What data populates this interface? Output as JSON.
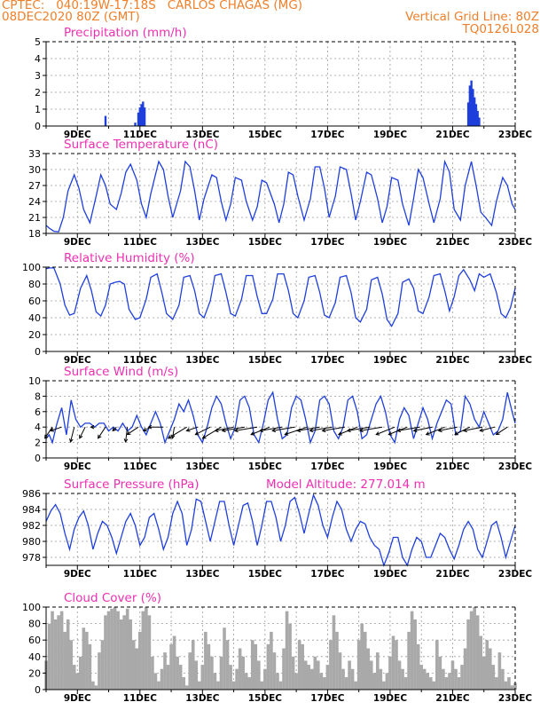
{
  "header": {
    "line1_left": "CPTEC:   040:19W-17:18S   CARLOS CHAGAS (MG)",
    "line2_left": "08DEC2020 80Z (GMT)",
    "line2_right": "Vertical Grid Line: 80Z",
    "line3_right": "TQ0126L028"
  },
  "colors": {
    "header": "#ef7f2a",
    "title": "#ef2fb2",
    "line": "#1f3fdc",
    "cloud": "#a9a9a9",
    "wind_arrow": "#000000"
  },
  "x_axis": {
    "start": "08DEC2020",
    "end": "23DEC2020",
    "tick_labels": [
      "9DEC",
      "11DEC",
      "13DEC",
      "15DEC",
      "17DEC",
      "19DEC",
      "21DEC",
      "23DEC"
    ],
    "tick_days": [
      9,
      11,
      13,
      15,
      17,
      19,
      21,
      23
    ]
  },
  "chart_data": [
    {
      "type": "bar",
      "title": "Precipitation (mm/h)",
      "ylim": [
        0,
        5
      ],
      "yticks": [
        0,
        1,
        2,
        3,
        4,
        5
      ],
      "grid": true,
      "x": [
        9.9,
        10.85,
        10.95,
        11.0,
        11.05,
        11.1,
        11.15,
        21.5,
        21.55,
        21.6,
        21.65,
        21.7,
        21.75,
        21.8,
        21.85
      ],
      "values": [
        0.6,
        0.2,
        0.8,
        1.1,
        1.3,
        1.45,
        1.1,
        1.4,
        2.4,
        2.7,
        2.2,
        1.7,
        1.3,
        0.9,
        0.5
      ]
    },
    {
      "type": "line",
      "title": "Surface Temperature (nC)",
      "ylim": [
        18,
        33
      ],
      "yticks": [
        18,
        21,
        24,
        27,
        30,
        33
      ],
      "grid": true,
      "x": [
        8.0,
        8.1,
        8.25,
        8.4,
        8.55,
        8.7,
        8.9,
        9.05,
        9.2,
        9.4,
        9.6,
        9.75,
        9.9,
        10.05,
        10.25,
        10.4,
        10.55,
        10.7,
        10.9,
        11.05,
        11.2,
        11.35,
        11.6,
        11.75,
        11.9,
        12.05,
        12.3,
        12.45,
        12.6,
        12.75,
        12.9,
        13.05,
        13.3,
        13.45,
        13.6,
        13.75,
        13.9,
        14.05,
        14.25,
        14.4,
        14.6,
        14.75,
        14.9,
        15.05,
        15.3,
        15.45,
        15.6,
        15.75,
        15.9,
        16.05,
        16.25,
        16.45,
        16.6,
        16.75,
        16.9,
        17.05,
        17.25,
        17.4,
        17.6,
        17.75,
        17.9,
        18.05,
        18.25,
        18.4,
        18.6,
        18.75,
        18.9,
        19.05,
        19.25,
        19.4,
        19.6,
        19.75,
        19.9,
        20.05,
        20.25,
        20.4,
        20.6,
        20.75,
        20.9,
        21.05,
        21.25,
        21.4,
        21.6,
        21.75,
        21.9,
        22.05,
        22.25,
        22.4,
        22.6,
        22.75,
        22.9,
        23.0
      ],
      "values": [
        19.5,
        19.0,
        18.4,
        18.3,
        21.0,
        26.0,
        29.0,
        26.5,
        22.5,
        20.0,
        25.0,
        29.0,
        27.0,
        23.5,
        22.5,
        25.5,
        29.5,
        31.0,
        28.0,
        23.5,
        21.0,
        25.5,
        31.5,
        30.0,
        25.0,
        21.0,
        26.0,
        31.5,
        30.5,
        26.0,
        20.5,
        24.5,
        29.0,
        28.5,
        24.0,
        20.5,
        23.5,
        28.5,
        28.0,
        24.0,
        20.5,
        23.0,
        28.0,
        27.5,
        23.5,
        20.0,
        23.5,
        29.5,
        29.0,
        25.0,
        20.5,
        24.5,
        30.5,
        30.5,
        26.5,
        21.0,
        25.0,
        30.5,
        30.0,
        25.5,
        20.5,
        24.0,
        29.5,
        29.0,
        24.5,
        20.0,
        23.0,
        28.5,
        28.0,
        23.5,
        19.5,
        24.5,
        30.0,
        28.5,
        23.5,
        20.0,
        24.5,
        31.5,
        29.5,
        22.5,
        20.5,
        27.0,
        31.5,
        27.0,
        22.0,
        21.0,
        19.5,
        24.0,
        28.5,
        27.0,
        23.5,
        22.5
      ]
    },
    {
      "type": "line",
      "title": "Relative Humidity (%)",
      "ylim": [
        0,
        100
      ],
      "yticks": [
        0,
        20,
        40,
        60,
        80,
        100
      ],
      "grid": true,
      "x": [
        8.0,
        8.1,
        8.25,
        8.45,
        8.6,
        8.75,
        8.9,
        9.1,
        9.3,
        9.45,
        9.6,
        9.75,
        9.9,
        10.05,
        10.2,
        10.35,
        10.5,
        10.65,
        10.85,
        11.0,
        11.2,
        11.35,
        11.55,
        11.7,
        11.85,
        12.05,
        12.25,
        12.4,
        12.6,
        12.75,
        12.9,
        13.05,
        13.25,
        13.4,
        13.6,
        13.75,
        13.9,
        14.05,
        14.25,
        14.4,
        14.6,
        14.75,
        14.9,
        15.05,
        15.25,
        15.4,
        15.6,
        15.75,
        15.9,
        16.05,
        16.25,
        16.4,
        16.6,
        16.75,
        16.9,
        17.05,
        17.25,
        17.4,
        17.6,
        17.75,
        17.9,
        18.05,
        18.25,
        18.4,
        18.6,
        18.75,
        18.9,
        19.05,
        19.25,
        19.4,
        19.6,
        19.75,
        19.9,
        20.05,
        20.25,
        20.4,
        20.6,
        20.75,
        20.9,
        21.05,
        21.2,
        21.35,
        21.55,
        21.7,
        21.85,
        22.0,
        22.2,
        22.4,
        22.55,
        22.7,
        22.85,
        23.0
      ],
      "values": [
        98,
        99,
        99,
        80,
        55,
        43,
        45,
        75,
        90,
        72,
        47,
        42,
        55,
        80,
        82,
        83,
        80,
        50,
        38,
        40,
        62,
        88,
        92,
        70,
        45,
        38,
        55,
        88,
        90,
        72,
        45,
        40,
        60,
        90,
        92,
        70,
        45,
        42,
        62,
        90,
        90,
        65,
        45,
        45,
        62,
        92,
        92,
        72,
        45,
        40,
        60,
        88,
        90,
        70,
        43,
        40,
        58,
        88,
        90,
        70,
        40,
        35,
        50,
        85,
        88,
        68,
        38,
        30,
        45,
        82,
        86,
        75,
        48,
        45,
        65,
        90,
        92,
        72,
        48,
        65,
        90,
        97,
        85,
        72,
        92,
        88,
        92,
        70,
        45,
        40,
        52,
        75
      ]
    },
    {
      "type": "line",
      "title": "Surface Wind (m/s)",
      "ylim": [
        0,
        10
      ],
      "yticks": [
        0,
        2,
        4,
        6,
        8,
        10
      ],
      "grid": true,
      "series_label": "speed with direction arrows",
      "x": [
        8.0,
        8.1,
        8.2,
        8.35,
        8.5,
        8.65,
        8.8,
        8.95,
        9.1,
        9.25,
        9.4,
        9.55,
        9.7,
        9.85,
        10.0,
        10.15,
        10.3,
        10.45,
        10.6,
        10.75,
        10.9,
        11.05,
        11.2,
        11.35,
        11.5,
        11.65,
        11.8,
        11.95,
        12.1,
        12.25,
        12.4,
        12.55,
        12.7,
        12.85,
        13.0,
        13.15,
        13.3,
        13.45,
        13.6,
        13.75,
        13.9,
        14.05,
        14.2,
        14.35,
        14.5,
        14.65,
        14.8,
        14.95,
        15.1,
        15.25,
        15.4,
        15.55,
        15.7,
        15.85,
        16.0,
        16.15,
        16.3,
        16.45,
        16.6,
        16.75,
        16.9,
        17.05,
        17.2,
        17.35,
        17.5,
        17.65,
        17.8,
        17.95,
        18.1,
        18.25,
        18.4,
        18.55,
        18.7,
        18.85,
        19.0,
        19.15,
        19.3,
        19.45,
        19.6,
        19.75,
        19.9,
        20.05,
        20.2,
        20.35,
        20.5,
        20.65,
        20.8,
        20.95,
        21.1,
        21.25,
        21.4,
        21.55,
        21.7,
        21.85,
        22.0,
        22.15,
        22.3,
        22.45,
        22.6,
        22.75,
        22.9,
        23.0
      ],
      "values": [
        2.5,
        3.0,
        2.0,
        4.5,
        6.5,
        3.0,
        7.5,
        5.0,
        4.0,
        4.5,
        4.5,
        4.0,
        4.5,
        4.5,
        3.5,
        4.0,
        3.5,
        4.5,
        3.5,
        4.0,
        5.5,
        4.0,
        3.0,
        4.5,
        6.0,
        4.5,
        2.0,
        3.5,
        5.0,
        7.0,
        6.0,
        7.5,
        5.5,
        3.0,
        2.0,
        4.0,
        6.5,
        8.0,
        7.0,
        4.5,
        2.5,
        4.0,
        7.5,
        8.0,
        6.5,
        3.0,
        2.0,
        4.5,
        7.5,
        8.5,
        5.0,
        2.5,
        3.0,
        6.5,
        8.0,
        7.5,
        5.0,
        2.0,
        3.5,
        7.5,
        8.0,
        7.0,
        3.5,
        2.5,
        4.0,
        7.5,
        8.0,
        6.0,
        2.5,
        3.0,
        5.0,
        7.0,
        8.0,
        6.0,
        3.0,
        2.0,
        5.0,
        6.5,
        5.5,
        2.5,
        4.5,
        6.5,
        5.0,
        2.5,
        4.5,
        6.0,
        7.5,
        7.0,
        3.0,
        3.5,
        8.0,
        7.0,
        5.0,
        4.0,
        6.0,
        4.5,
        3.0,
        3.5,
        5.0,
        8.5,
        6.0,
        4.5
      ],
      "arrows": {
        "x": [
          8.2,
          8.5,
          8.9,
          9.25,
          9.55,
          9.9,
          10.25,
          10.6,
          10.95,
          11.35,
          11.75,
          12.1,
          12.5,
          12.85,
          13.25,
          13.6,
          14.0,
          14.35,
          14.75,
          15.15,
          15.55,
          15.95,
          16.35,
          16.75,
          17.15,
          17.55,
          17.95,
          18.35,
          18.75,
          19.15,
          19.55,
          19.95,
          20.35,
          20.75,
          21.15,
          21.55,
          21.95,
          22.35,
          22.75
        ],
        "u": [
          -2,
          -3,
          -1,
          -1.5,
          -1,
          -2,
          -1,
          -0.5,
          -3,
          -2,
          -4,
          -0.5,
          -5,
          -3,
          -4,
          -5,
          -5,
          -6,
          -6,
          -5,
          -6,
          -6,
          -6,
          -6,
          -6,
          -6,
          -5,
          -6,
          -6,
          -5,
          -5,
          -6,
          -5,
          -5,
          -5,
          -4,
          -5,
          -4,
          -3
        ],
        "v": [
          -3,
          -1,
          -4,
          -3,
          0,
          -3,
          -1,
          -4,
          -2,
          -1,
          0,
          -3,
          -3,
          -1,
          -2,
          -3,
          -1,
          -1,
          -1,
          -2,
          -1,
          -1,
          -2,
          -1,
          -1,
          -1,
          -2,
          -1,
          -1,
          -2,
          -2,
          -1,
          -1,
          -2,
          -1,
          -2,
          -1,
          -1,
          -2
        ]
      }
    },
    {
      "type": "line",
      "title": "Surface Pressure (hPa)",
      "annotation": "Model Altitude: 277.014 m",
      "ylim": [
        977,
        986
      ],
      "yticks": [
        978,
        980,
        982,
        984,
        986
      ],
      "grid": true,
      "x": [
        8.0,
        8.15,
        8.3,
        8.45,
        8.6,
        8.75,
        8.9,
        9.05,
        9.2,
        9.35,
        9.5,
        9.65,
        9.8,
        9.95,
        10.1,
        10.25,
        10.4,
        10.55,
        10.7,
        10.85,
        11.0,
        11.15,
        11.3,
        11.45,
        11.6,
        11.75,
        11.9,
        12.05,
        12.2,
        12.35,
        12.5,
        12.65,
        12.8,
        12.95,
        13.1,
        13.25,
        13.4,
        13.55,
        13.7,
        13.85,
        14.0,
        14.15,
        14.3,
        14.45,
        14.6,
        14.75,
        14.9,
        15.05,
        15.2,
        15.35,
        15.5,
        15.65,
        15.8,
        15.95,
        16.1,
        16.25,
        16.4,
        16.55,
        16.7,
        16.85,
        17.0,
        17.15,
        17.3,
        17.45,
        17.6,
        17.75,
        17.9,
        18.05,
        18.2,
        18.35,
        18.5,
        18.65,
        18.8,
        18.95,
        19.1,
        19.25,
        19.4,
        19.55,
        19.7,
        19.85,
        20.0,
        20.15,
        20.3,
        20.45,
        20.6,
        20.75,
        20.9,
        21.05,
        21.2,
        21.35,
        21.5,
        21.65,
        21.8,
        21.95,
        22.1,
        22.25,
        22.4,
        22.55,
        22.7,
        22.85,
        23.0
      ],
      "values": [
        982.5,
        983.8,
        984.6,
        983.5,
        981.0,
        979.0,
        981.5,
        983.0,
        983.8,
        982.0,
        979.0,
        981.0,
        982.5,
        982.0,
        980.5,
        978.5,
        980.5,
        982.5,
        983.5,
        982.0,
        979.5,
        980.5,
        983.0,
        983.5,
        981.5,
        979.0,
        980.5,
        983.5,
        985.0,
        983.5,
        979.5,
        981.5,
        985.3,
        985.0,
        982.5,
        980.0,
        982.5,
        985.0,
        985.0,
        982.0,
        979.5,
        982.0,
        984.5,
        984.8,
        982.5,
        979.5,
        982.0,
        985.0,
        985.0,
        983.0,
        980.0,
        982.0,
        985.0,
        985.5,
        983.5,
        981.0,
        983.5,
        985.8,
        984.5,
        982.0,
        980.5,
        983.0,
        985.0,
        984.0,
        981.5,
        980.0,
        981.5,
        982.5,
        982.2,
        980.5,
        979.5,
        979.0,
        977.0,
        978.5,
        980.5,
        980.5,
        978.0,
        977.0,
        979.0,
        980.5,
        980.0,
        978.0,
        978.0,
        979.5,
        981.0,
        980.5,
        979.0,
        977.8,
        979.5,
        981.5,
        982.5,
        981.5,
        979.0,
        978.0,
        980.0,
        982.0,
        982.5,
        980.5,
        978.0,
        980.0,
        982.0
      ]
    },
    {
      "type": "area",
      "title": "Cloud Cover (%)",
      "ylim": [
        0,
        100
      ],
      "yticks": [
        0,
        20,
        40,
        60,
        80,
        100
      ],
      "grid": true,
      "x": [
        8.0,
        8.1,
        8.2,
        8.3,
        8.4,
        8.5,
        8.6,
        8.7,
        8.8,
        8.9,
        9.0,
        9.1,
        9.2,
        9.3,
        9.4,
        9.5,
        9.6,
        9.7,
        9.8,
        9.9,
        10.0,
        10.1,
        10.2,
        10.3,
        10.4,
        10.5,
        10.6,
        10.7,
        10.8,
        10.9,
        11.0,
        11.1,
        11.2,
        11.3,
        11.4,
        11.5,
        11.6,
        11.7,
        11.8,
        11.9,
        12.0,
        12.1,
        12.2,
        12.3,
        12.4,
        12.5,
        12.6,
        12.7,
        12.8,
        12.9,
        13.0,
        13.1,
        13.2,
        13.3,
        13.4,
        13.5,
        13.6,
        13.7,
        13.8,
        13.9,
        14.0,
        14.1,
        14.2,
        14.3,
        14.4,
        14.5,
        14.6,
        14.7,
        14.8,
        14.9,
        15.0,
        15.1,
        15.2,
        15.3,
        15.4,
        15.5,
        15.6,
        15.7,
        15.8,
        15.9,
        16.0,
        16.1,
        16.2,
        16.3,
        16.4,
        16.5,
        16.6,
        16.7,
        16.8,
        16.9,
        17.0,
        17.1,
        17.2,
        17.3,
        17.4,
        17.5,
        17.6,
        17.7,
        17.8,
        17.9,
        18.0,
        18.1,
        18.2,
        18.3,
        18.4,
        18.5,
        18.6,
        18.7,
        18.8,
        18.9,
        19.0,
        19.1,
        19.2,
        19.3,
        19.4,
        19.5,
        19.6,
        19.7,
        19.8,
        19.9,
        20.0,
        20.1,
        20.2,
        20.3,
        20.4,
        20.5,
        20.6,
        20.7,
        20.8,
        20.9,
        21.0,
        21.1,
        21.2,
        21.3,
        21.4,
        21.5,
        21.6,
        21.7,
        21.8,
        21.9,
        22.0,
        22.1,
        22.2,
        22.3,
        22.4,
        22.5,
        22.6,
        22.7,
        22.8,
        22.9,
        23.0
      ],
      "values": [
        35,
        80,
        95,
        85,
        90,
        95,
        70,
        85,
        60,
        30,
        20,
        40,
        75,
        70,
        55,
        10,
        5,
        45,
        60,
        90,
        95,
        98,
        100,
        95,
        85,
        90,
        98,
        85,
        60,
        50,
        70,
        95,
        100,
        90,
        40,
        20,
        10,
        25,
        45,
        30,
        55,
        65,
        40,
        30,
        15,
        5,
        45,
        60,
        35,
        10,
        30,
        70,
        55,
        40,
        20,
        10,
        40,
        75,
        60,
        30,
        10,
        25,
        50,
        40,
        20,
        15,
        60,
        55,
        35,
        10,
        25,
        55,
        70,
        45,
        20,
        10,
        50,
        95,
        80,
        40,
        20,
        60,
        55,
        35,
        30,
        25,
        40,
        35,
        20,
        15,
        30,
        60,
        90,
        70,
        45,
        25,
        15,
        35,
        25,
        10,
        60,
        80,
        70,
        50,
        35,
        20,
        45,
        25,
        10,
        20,
        40,
        65,
        60,
        35,
        25,
        15,
        70,
        95,
        85,
        55,
        30,
        25,
        20,
        15,
        10,
        60,
        40,
        25,
        15,
        20,
        35,
        25,
        15,
        30,
        50,
        85,
        95,
        100,
        90,
        65,
        40,
        60,
        50,
        30,
        15,
        45,
        25,
        10,
        15,
        5,
        8
      ]
    }
  ]
}
